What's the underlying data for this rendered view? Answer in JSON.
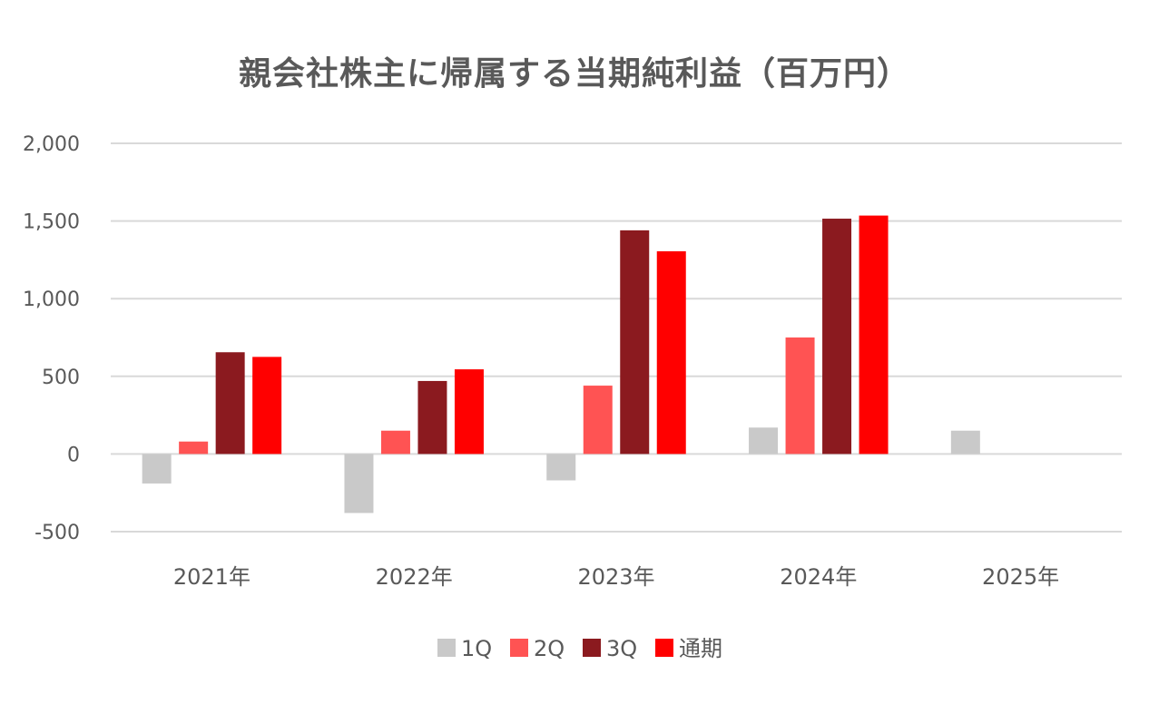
{
  "chart_data": {
    "type": "bar",
    "title": "親会社株主に帰属する当期純利益（百万円）",
    "xlabel": "",
    "ylabel": "",
    "categories": [
      "2021年",
      "2022年",
      "2023年",
      "2024年",
      "2025年"
    ],
    "series": [
      {
        "name": "1Q",
        "color": "#C9C9C9",
        "values": [
          -190,
          -380,
          -170,
          170,
          150
        ]
      },
      {
        "name": "2Q",
        "color": "#FF5353",
        "values": [
          80,
          150,
          440,
          750,
          null
        ]
      },
      {
        "name": "3Q",
        "color": "#8B1A1F",
        "values": [
          655,
          470,
          1440,
          1515,
          null
        ]
      },
      {
        "name": "通期",
        "color": "#FF0000",
        "values": [
          625,
          545,
          1305,
          1535,
          null
        ]
      }
    ],
    "ylim": [
      -500,
      2000
    ],
    "yticks": [
      2000,
      1500,
      1000,
      500,
      0,
      -500
    ],
    "ytick_labels": [
      "2,000",
      "1,500",
      "1,000",
      "500",
      "0",
      "-500"
    ],
    "negative_tick_color": "#FF0000",
    "grid": true,
    "legend_position": "bottom"
  }
}
